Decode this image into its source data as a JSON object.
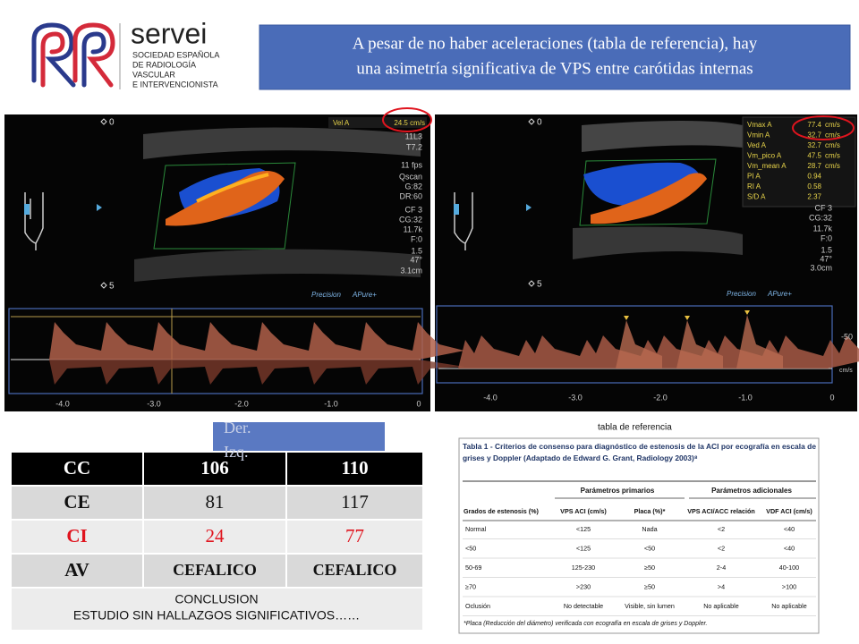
{
  "logo": {
    "name": "servei",
    "lines": [
      "SOCIEDAD ESPAÑOLA",
      "DE RADIOLOGÍA",
      "VASCULAR",
      "E INTERVENCIONISTA"
    ]
  },
  "header": {
    "title_lines": [
      "A pesar de no haber aceleraciones (tabla de referencia), hay",
      "una asimetría significativa de VPS entre carótidas internas"
    ]
  },
  "ultrasound_left": {
    "vel_label": "Vel A",
    "vel_value": "24.5 cm/s",
    "params": [
      "11L3",
      "T7.2",
      "11 fps",
      "Qscan",
      "G:82",
      "DR:60",
      "CF 3",
      "CG:32",
      "11.7k",
      "F:0",
      "1.5",
      "47°",
      "3.1cm"
    ],
    "depth": [
      "0",
      "5"
    ],
    "brand": [
      "Precision",
      "APure+"
    ],
    "time_axis": [
      "-4.0",
      "-3.0",
      "-2.0",
      "-1.0",
      "0"
    ]
  },
  "ultrasound_right": {
    "measurements": [
      [
        "Vmax A",
        "77.4",
        "cm/s"
      ],
      [
        "Vmin A",
        "32.7",
        "cm/s"
      ],
      [
        "Ved A",
        "32.7",
        "cm/s"
      ],
      [
        "Vm_pico A",
        "47.5",
        "cm/s"
      ],
      [
        "Vm_mean A",
        "28.7",
        "cm/s"
      ],
      [
        "PI A",
        "0.94",
        ""
      ],
      [
        "RI A",
        "0.58",
        ""
      ],
      [
        "S/D A",
        "2.37",
        ""
      ]
    ],
    "params": [
      "CF 3",
      "CG:32",
      "11.7k",
      "F:0",
      "1.5",
      "47°",
      "3.0cm"
    ],
    "depth": [
      "0",
      "5"
    ],
    "brand": [
      "Precision",
      "APure+"
    ],
    "velocity_axis": [
      "-50",
      "cm/s"
    ],
    "time_axis": [
      "-4.0",
      "-3.0",
      "-2.0",
      "-1.0",
      "0"
    ]
  },
  "side_box": {
    "lines": [
      "Der.",
      "Izq."
    ]
  },
  "results_table": {
    "rows": [
      [
        "CC",
        "106",
        "110"
      ],
      [
        "CE",
        "81",
        "117"
      ],
      [
        "CI",
        "24",
        "77"
      ],
      [
        "AV",
        "CEFALICO",
        "CEFALICO"
      ]
    ],
    "conclusion": [
      "CONCLUSION",
      "ESTUDIO SIN HALLAZGOS SIGNIFICATIVOS……"
    ]
  },
  "reference": {
    "caption": "tabla de referencia",
    "title_lines": [
      "Tabla 1 - Criterios de consenso para diagnóstico de estenosis de la ACI por ecografía en escala de",
      "grises y Doppler (Adaptado de Edward G. Grant, Radiology 2003)⁸"
    ],
    "groups": [
      "Parámetros primarios",
      "Parámetros adicionales"
    ],
    "columns": [
      "Grados de estenosis (%)",
      "VPS ACI (cm/s)",
      "Placa (%)*",
      "VPS ACI/ACC relación",
      "VDF ACI (cm/s)"
    ],
    "rows": [
      [
        "Normal",
        "<125",
        "Nada",
        "<2",
        "<40"
      ],
      [
        "<50",
        "<125",
        "<50",
        "<2",
        "<40"
      ],
      [
        "50-69",
        "125-230",
        "≥50",
        "2-4",
        "40-100"
      ],
      [
        "≥70",
        ">230",
        "≥50",
        ">4",
        ">100"
      ],
      [
        "Oclusión",
        "No detectable",
        "Visible, sin lumen",
        "No aplicable",
        "No aplicable"
      ]
    ],
    "footnote": "*Placa (Reducción del diámetro) verificada con ecografía en escala de grises y Doppler."
  }
}
